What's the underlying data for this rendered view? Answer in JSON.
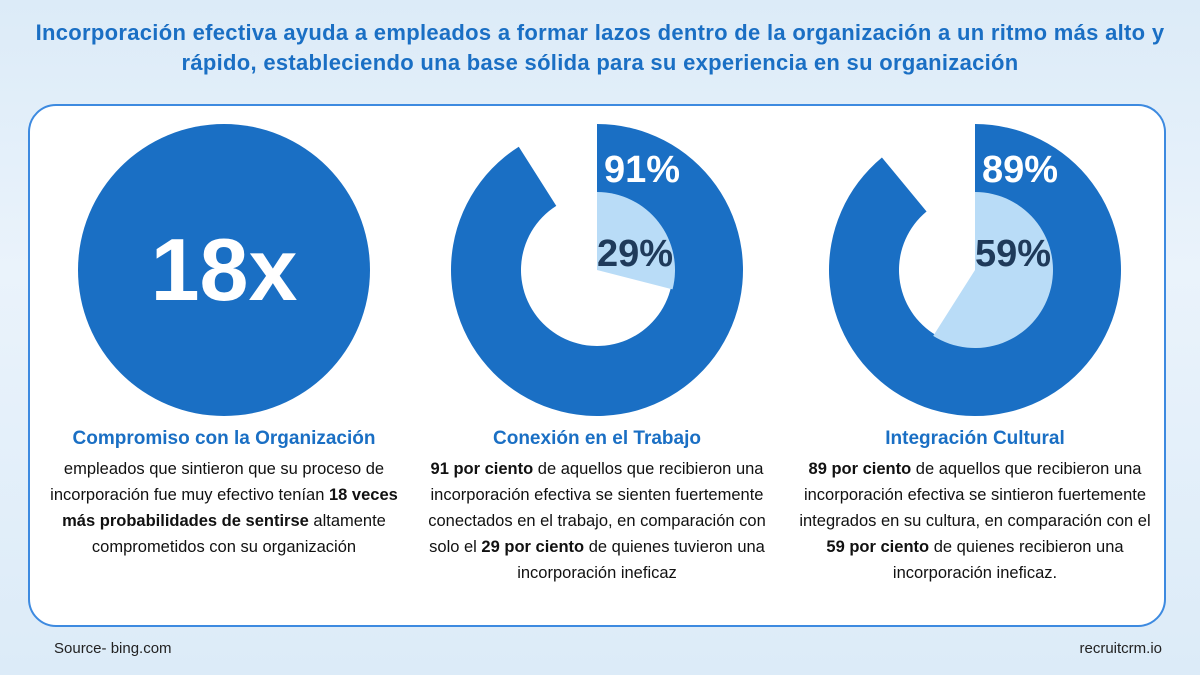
{
  "title": "Incorporación efectiva ayuda a empleados a formar lazos dentro de la organización a un ritmo más alto y rápido, estableciendo una base sólida para su experiencia en su organización",
  "panels": [
    {
      "big_text": "18x",
      "heading": "Compromiso con la Organización",
      "body": [
        {
          "text": "empleados que sintieron que su proceso de incorporación fue muy efectivo tenían ",
          "bold": false
        },
        {
          "text": "18 veces más probabilidades de sentirse",
          "bold": true
        },
        {
          "text": " altamente comprometidos con su organización",
          "bold": false
        }
      ]
    },
    {
      "outer": {
        "value": 91,
        "label": "91%"
      },
      "inner": {
        "value": 29,
        "label": "29%"
      },
      "heading": "Conexión en el Trabajo",
      "body": [
        {
          "text": "91 por ciento",
          "bold": true
        },
        {
          "text": " de aquellos que recibieron una incorporación efectiva se sienten fuertemente conectados en el trabajo, en comparación con solo el ",
          "bold": false
        },
        {
          "text": "29 por ciento",
          "bold": true
        },
        {
          "text": " de quienes tuvieron una incorporación ineficaz",
          "bold": false
        }
      ]
    },
    {
      "outer": {
        "value": 89,
        "label": "89%"
      },
      "inner": {
        "value": 59,
        "label": "59%"
      },
      "heading": "Integración Cultural",
      "body": [
        {
          "text": "89 por ciento",
          "bold": true
        },
        {
          "text": " de aquellos que recibieron una incorporación efectiva se sintieron fuertemente integrados en su cultura, en comparación con el ",
          "bold": false
        },
        {
          "text": "59 por ciento",
          "bold": true
        },
        {
          "text": " de quienes recibieron una incorporación ineficaz.",
          "bold": false
        }
      ]
    }
  ],
  "footer": {
    "source": "Source- bing.com",
    "brand": "recruitcrm.io"
  }
}
